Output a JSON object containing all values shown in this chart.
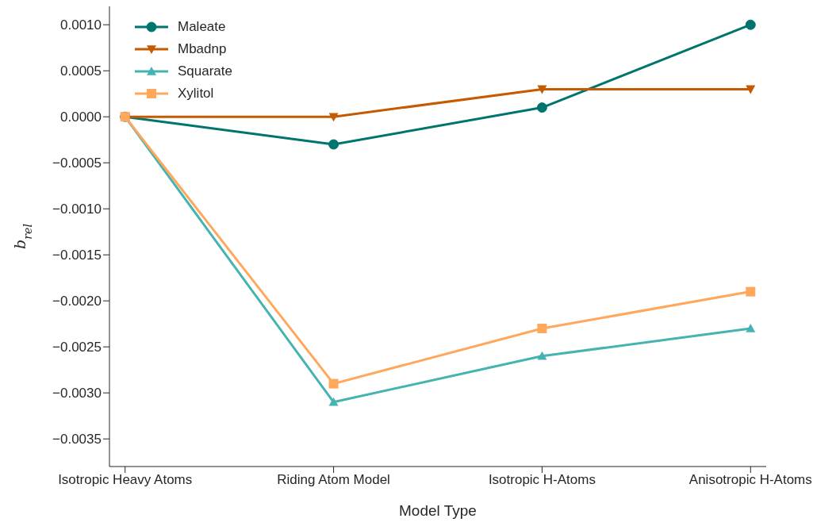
{
  "chart_data": {
    "type": "line",
    "xlabel": "Model Type",
    "ylabel": "b$_{rel}$",
    "categories": [
      "Isotropic Heavy Atoms",
      "Riding Atom Model",
      "Isotropic H-Atoms",
      "Anisotropic H-Atoms"
    ],
    "series": [
      {
        "name": "Maleate",
        "color": "#00756f",
        "marker": "circle",
        "values": [
          0.0,
          -0.0003,
          0.0001,
          0.001
        ]
      },
      {
        "name": "Mbadnp",
        "color": "#c55a00",
        "marker": "triangle-down",
        "values": [
          0.0,
          0.0,
          0.0003,
          0.0003
        ]
      },
      {
        "name": "Squarate",
        "color": "#45b3b0",
        "marker": "triangle",
        "values": [
          0.0,
          -0.0031,
          -0.0026,
          -0.0023
        ]
      },
      {
        "name": "Xylitol",
        "color": "#ffa75a",
        "marker": "square",
        "values": [
          0.0,
          -0.0029,
          -0.0023,
          -0.0019
        ]
      }
    ],
    "ylim": [
      -0.0038,
      0.0012
    ],
    "yticks": [
      {
        "value": -0.0035,
        "label": "−0.0035"
      },
      {
        "value": -0.003,
        "label": "−0.0030"
      },
      {
        "value": -0.0025,
        "label": "−0.0025"
      },
      {
        "value": -0.002,
        "label": "−0.0020"
      },
      {
        "value": -0.0015,
        "label": "−0.0015"
      },
      {
        "value": -0.001,
        "label": "−0.0010"
      },
      {
        "value": -0.0005,
        "label": "−0.0005"
      },
      {
        "value": 0,
        "label": "0.0000"
      },
      {
        "value": 0.0005,
        "label": "0.0005"
      },
      {
        "value": 0.001,
        "label": "0.0010"
      }
    ],
    "grid": false,
    "legend": "top left",
    "line_style": "solid"
  }
}
